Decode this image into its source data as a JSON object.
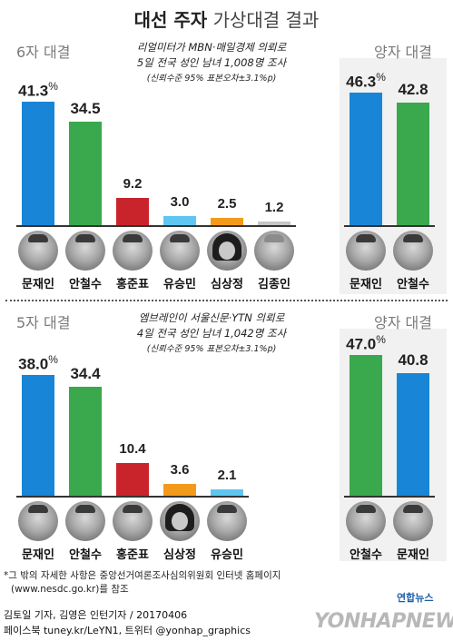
{
  "title": {
    "bold": "대선 주자",
    "light": "가상대결 결과"
  },
  "colors": {
    "moon": "#1985d6",
    "ahn": "#3aa84c",
    "hong": "#c9242b",
    "yoo": "#5ec6f0",
    "sim": "#f39a1b",
    "kim": "#c6c6c6"
  },
  "chart_data": [
    {
      "type": "bar",
      "label": "6자 대결",
      "note_lines": [
        "리얼미터가 MBN·매일경제 의뢰로",
        "5일 전국 성인 남녀 1,008명 조사"
      ],
      "note_small": "(신뢰수준 95% 표본오차±3.1%p)",
      "categories": [
        "문재인",
        "안철수",
        "홍준표",
        "유승민",
        "심상정",
        "김종인"
      ],
      "values": [
        41.3,
        34.5,
        9.2,
        3.0,
        2.5,
        1.2
      ],
      "labels": [
        "41.3",
        "34.5",
        "9.2",
        "3.0",
        "2.5",
        "1.2"
      ],
      "unit": "%",
      "colors": [
        "#1985d6",
        "#3aa84c",
        "#c9242b",
        "#5ec6f0",
        "#f39a1b",
        "#c6c6c6"
      ],
      "ylim": [
        0,
        41.3
      ]
    },
    {
      "type": "bar",
      "label": "양자 대결",
      "categories": [
        "문재인",
        "안철수"
      ],
      "values": [
        46.3,
        42.8
      ],
      "labels": [
        "46.3",
        "42.8"
      ],
      "unit": "%",
      "colors": [
        "#1985d6",
        "#3aa84c"
      ],
      "ylim": [
        0,
        46.3
      ]
    },
    {
      "type": "bar",
      "label": "5자 대결",
      "note_lines": [
        "엠브레인이 서울신문·YTN 의뢰로",
        "4일 전국 성인 남녀 1,042명 조사"
      ],
      "note_small": "(신뢰수준 95% 표본오차±3.1%p)",
      "categories": [
        "문재인",
        "안철수",
        "홍준표",
        "심상정",
        "유승민"
      ],
      "values": [
        38.0,
        34.4,
        10.4,
        3.6,
        2.1
      ],
      "labels": [
        "38.0",
        "34.4",
        "10.4",
        "3.6",
        "2.1"
      ],
      "unit": "%",
      "colors": [
        "#1985d6",
        "#3aa84c",
        "#c9242b",
        "#f39a1b",
        "#5ec6f0"
      ],
      "ylim": [
        0,
        38.0
      ]
    },
    {
      "type": "bar",
      "label": "양자 대결",
      "categories": [
        "안철수",
        "문재인"
      ],
      "values": [
        47.0,
        40.8
      ],
      "labels": [
        "47.0",
        "40.8"
      ],
      "unit": "%",
      "colors": [
        "#3aa84c",
        "#1985d6"
      ],
      "ylim": [
        0,
        47.0
      ]
    }
  ],
  "footnote": {
    "line1": "*그 밖의 자세한 사항은 중앙선거여론조사심의위원회 인터넷 홈페이지",
    "line2": "(www.nesdc.go.kr)를 참조"
  },
  "credit": {
    "line1": "김토일 기자, 김영은 인턴기자 / 20170406",
    "line2": "페이스북 tuney.kr/LeYN1, 트위터 @yonhap_graphics"
  },
  "logo": "연합뉴스",
  "watermark": "YONHAPNEWS"
}
